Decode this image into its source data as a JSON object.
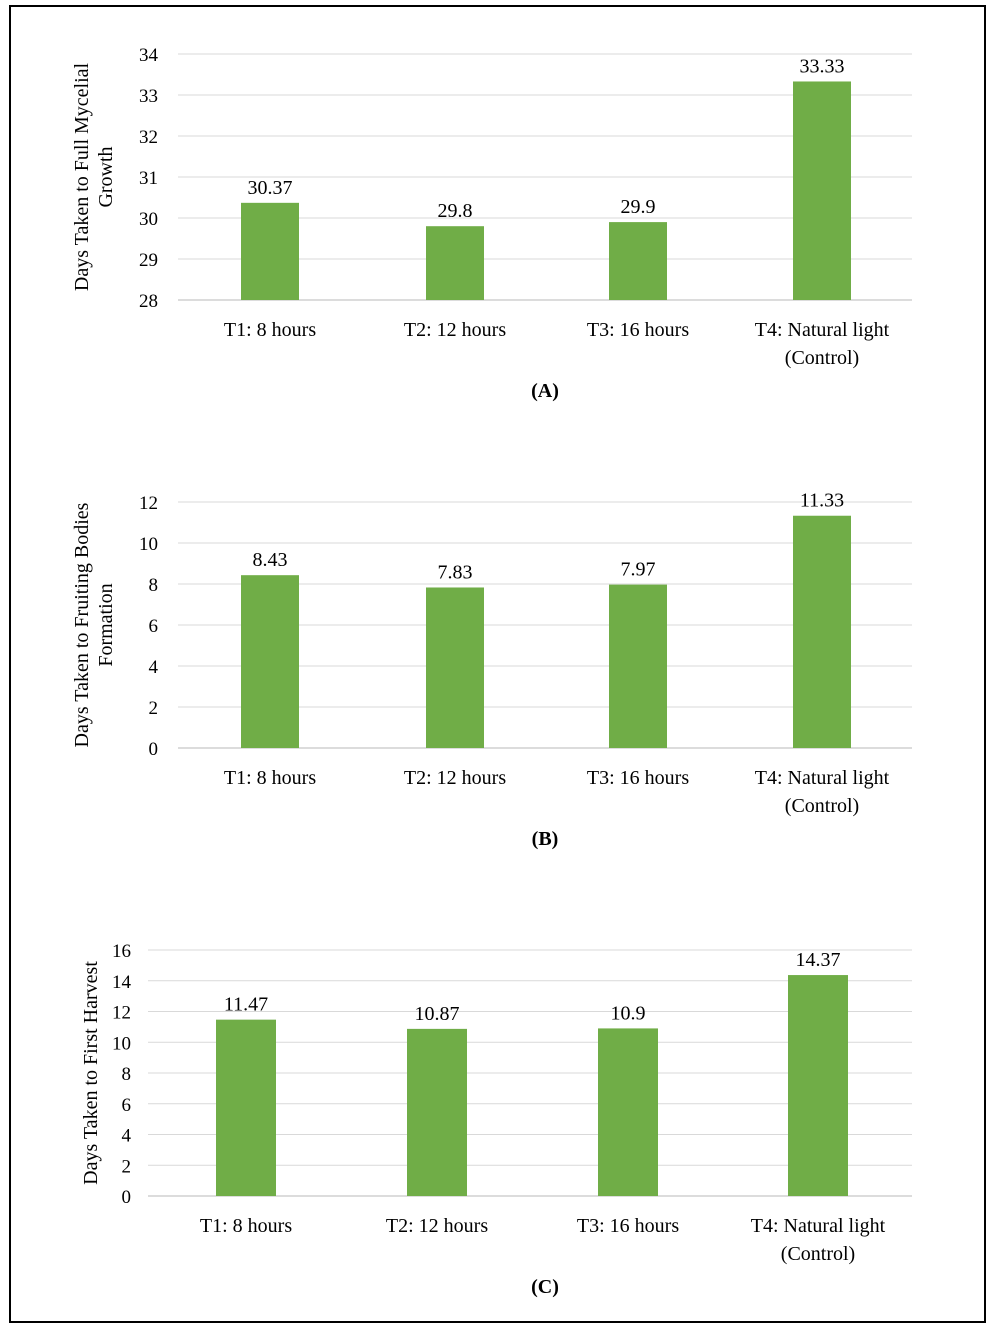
{
  "colors": {
    "bar": "#70AD47",
    "grid": "#D9D9D9",
    "axis": "#D0D0D0",
    "frame": "#000000"
  },
  "chart_data": [
    {
      "type": "bar",
      "panel_label": "(A)",
      "ylabel": [
        "Days Taken to Full Mycelial",
        "Growth"
      ],
      "categories": [
        [
          "T1: 8 hours"
        ],
        [
          "T2: 12 hours"
        ],
        [
          "T3: 16 hours"
        ],
        [
          "T4: Natural light",
          "(Control)"
        ]
      ],
      "values": [
        30.37,
        29.8,
        29.9,
        33.33
      ],
      "value_labels": [
        "30.37",
        "29.8",
        "29.9",
        "33.33"
      ],
      "ylim": [
        28,
        34
      ],
      "yticks": [
        28,
        29,
        30,
        31,
        32,
        33,
        34
      ],
      "grid": true,
      "legend": "none"
    },
    {
      "type": "bar",
      "panel_label": "(B)",
      "ylabel": [
        "Days Taken to Fruiting Bodies",
        "Formation"
      ],
      "categories": [
        [
          "T1: 8 hours"
        ],
        [
          "T2: 12 hours"
        ],
        [
          "T3: 16 hours"
        ],
        [
          "T4: Natural light",
          "(Control)"
        ]
      ],
      "values": [
        8.43,
        7.83,
        7.97,
        11.33
      ],
      "value_labels": [
        "8.43",
        "7.83",
        "7.97",
        "11.33"
      ],
      "ylim": [
        0,
        12
      ],
      "yticks": [
        0,
        2,
        4,
        6,
        8,
        10,
        12
      ],
      "grid": true,
      "legend": "none"
    },
    {
      "type": "bar",
      "panel_label": "(C)",
      "ylabel": [
        "Days Taken to First Harvest"
      ],
      "categories": [
        [
          "T1: 8 hours"
        ],
        [
          "T2: 12 hours"
        ],
        [
          "T3: 16 hours"
        ],
        [
          "T4: Natural light",
          "(Control)"
        ]
      ],
      "values": [
        11.47,
        10.87,
        10.9,
        14.37
      ],
      "value_labels": [
        "11.47",
        "10.87",
        "10.9",
        "14.37"
      ],
      "ylim": [
        0,
        16
      ],
      "yticks": [
        0,
        2,
        4,
        6,
        8,
        10,
        12,
        14,
        16
      ],
      "grid": true,
      "legend": "none"
    }
  ]
}
